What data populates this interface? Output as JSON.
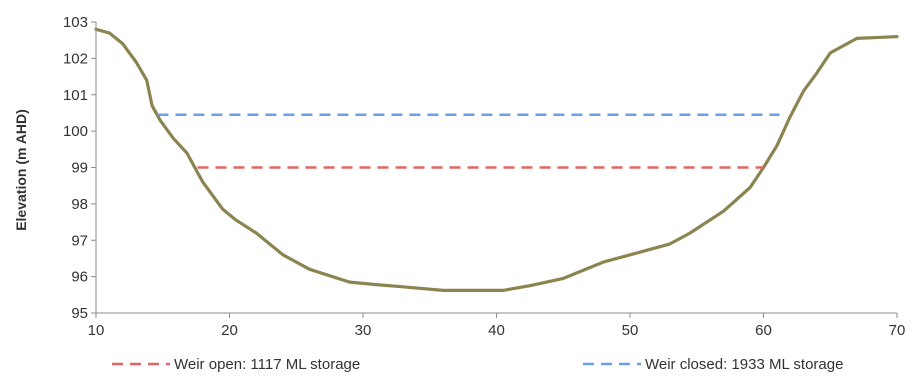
{
  "chart_data": {
    "type": "line",
    "title": "",
    "xlabel": "",
    "ylabel": "Elevation (m AHD)",
    "xlim": [
      10,
      70
    ],
    "ylim": [
      95,
      103
    ],
    "xticks": [
      "10",
      "20",
      "30",
      "40",
      "50",
      "60",
      "70"
    ],
    "yticks": [
      "95",
      "96",
      "97",
      "98",
      "99",
      "100",
      "101",
      "102",
      "103"
    ],
    "grid": false,
    "legend_position": "bottom",
    "series": [
      {
        "color": "#8b8450",
        "style": "solid",
        "x": [
          10,
          11,
          12,
          13,
          13.8,
          14.2,
          14.8,
          15.8,
          16.8,
          18,
          19.5,
          20.5,
          22,
          24,
          26,
          29,
          31,
          33,
          36,
          38,
          40.5,
          42.5,
          45,
          48,
          51,
          53,
          54.5,
          57,
          59,
          60,
          61,
          62,
          63,
          64,
          65,
          67,
          70
        ],
        "y": [
          102.8,
          102.7,
          102.4,
          101.9,
          101.4,
          100.7,
          100.3,
          99.8,
          99.4,
          98.6,
          97.85,
          97.55,
          97.2,
          96.6,
          96.2,
          95.85,
          95.78,
          95.72,
          95.62,
          95.62,
          95.62,
          95.75,
          95.95,
          96.4,
          96.7,
          96.9,
          97.2,
          97.8,
          98.45,
          99.0,
          99.6,
          100.4,
          101.1,
          101.6,
          102.15,
          102.55,
          102.6
        ]
      },
      {
        "name": "Weir open: 1117 ML storage",
        "color": "#e06666",
        "style": "dashed",
        "x": [
          17.6,
          60
        ],
        "y": [
          99.0,
          99.0
        ]
      },
      {
        "name": "Weir closed: 1933 ML storage",
        "color": "#6d9eeb",
        "style": "dashed",
        "x": [
          14.6,
          61.2
        ],
        "y": [
          100.45,
          100.45
        ]
      }
    ]
  }
}
